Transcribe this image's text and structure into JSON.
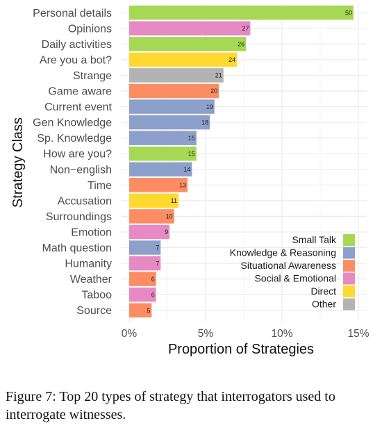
{
  "chart_data": {
    "type": "bar",
    "orientation": "horizontal",
    "xlabel": "Proportion of Strategies",
    "ylabel": "Strategy Class",
    "xlim": [
      0,
      0.155
    ],
    "x_ticks": [
      {
        "value": 0,
        "label": "0%"
      },
      {
        "value": 0.05,
        "label": "5%"
      },
      {
        "value": 0.1,
        "label": "10%"
      },
      {
        "value": 0.15,
        "label": "15%"
      }
    ],
    "grid": "on",
    "legend_placement": "bottom-right",
    "legend": [
      {
        "name": "Small Talk",
        "color": "#a6d854"
      },
      {
        "name": "Knowledge & Reasoning",
        "color": "#8da0cb"
      },
      {
        "name": "Situational Awareness",
        "color": "#fc8d62"
      },
      {
        "name": "Social & Emotional",
        "color": "#e78ac3"
      },
      {
        "name": "Direct",
        "color": "#ffd92f"
      },
      {
        "name": "Other",
        "color": "#b3b3b3"
      }
    ],
    "categories": [
      {
        "name": "Personal details",
        "proportion": 0.1468,
        "count": 50,
        "group": "Small Talk"
      },
      {
        "name": "Opinions",
        "proportion": 0.0793,
        "count": 27,
        "group": "Social & Emotional"
      },
      {
        "name": "Daily activities",
        "proportion": 0.0764,
        "count": 26,
        "group": "Small Talk"
      },
      {
        "name": "Are you a bot?",
        "proportion": 0.0705,
        "count": 24,
        "group": "Direct"
      },
      {
        "name": "Strange",
        "proportion": 0.0617,
        "count": 21,
        "group": "Other"
      },
      {
        "name": "Game aware",
        "proportion": 0.0587,
        "count": 20,
        "group": "Situational Awareness"
      },
      {
        "name": "Current event",
        "proportion": 0.0558,
        "count": 19,
        "group": "Knowledge & Reasoning"
      },
      {
        "name": "Gen Knowledge",
        "proportion": 0.0528,
        "count": 18,
        "group": "Knowledge & Reasoning"
      },
      {
        "name": "Sp. Knowledge",
        "proportion": 0.044,
        "count": 15,
        "group": "Knowledge & Reasoning"
      },
      {
        "name": "How are you?",
        "proportion": 0.044,
        "count": 15,
        "group": "Small Talk"
      },
      {
        "name": "Non−english",
        "proportion": 0.0411,
        "count": 14,
        "group": "Knowledge & Reasoning"
      },
      {
        "name": "Time",
        "proportion": 0.0382,
        "count": 13,
        "group": "Situational Awareness"
      },
      {
        "name": "Accusation",
        "proportion": 0.0323,
        "count": 11,
        "group": "Direct"
      },
      {
        "name": "Surroundings",
        "proportion": 0.0294,
        "count": 10,
        "group": "Situational Awareness"
      },
      {
        "name": "Emotion",
        "proportion": 0.0264,
        "count": 9,
        "group": "Social & Emotional"
      },
      {
        "name": "Math question",
        "proportion": 0.0206,
        "count": 7,
        "group": "Knowledge & Reasoning"
      },
      {
        "name": "Humanity",
        "proportion": 0.0206,
        "count": 7,
        "group": "Social & Emotional"
      },
      {
        "name": "Weather",
        "proportion": 0.0176,
        "count": 6,
        "group": "Situational Awareness"
      },
      {
        "name": "Taboo",
        "proportion": 0.0176,
        "count": 6,
        "group": "Social & Emotional"
      },
      {
        "name": "Source",
        "proportion": 0.0147,
        "count": 5,
        "group": "Situational Awareness"
      }
    ]
  },
  "caption": "Figure 7: Top 20 types of strategy that interrogators used to interrogate witnesses."
}
